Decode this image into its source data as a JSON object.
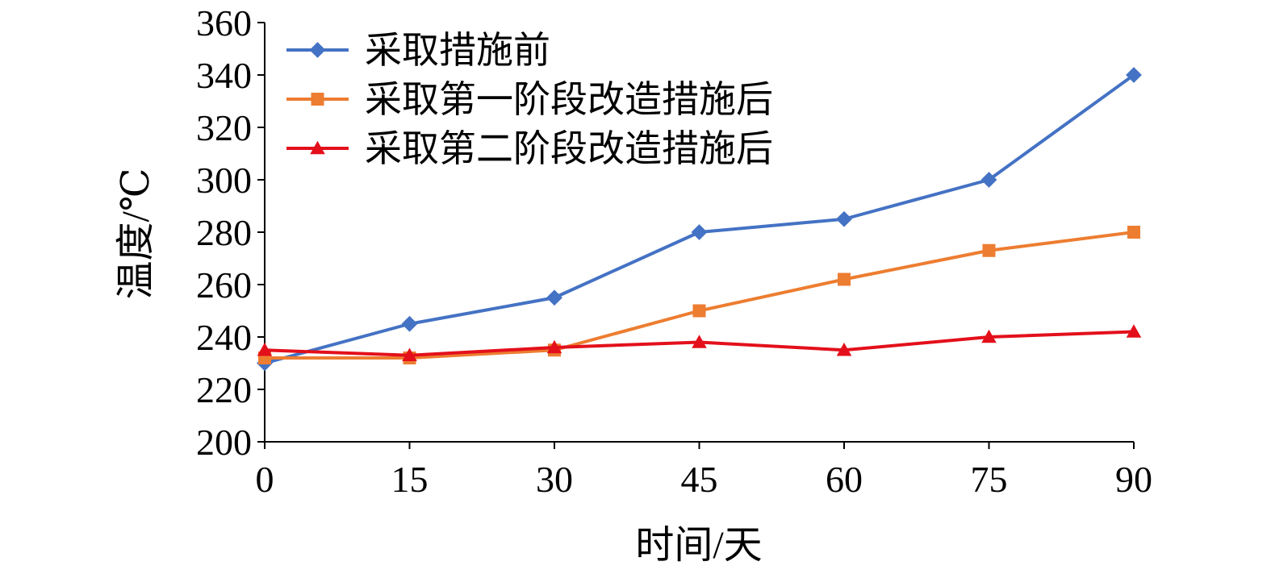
{
  "chart_data": {
    "type": "line",
    "title": "",
    "xlabel": "时间/天",
    "ylabel": "温度/℃",
    "x": [
      0,
      15,
      30,
      45,
      60,
      75,
      90
    ],
    "xlim": [
      0,
      90
    ],
    "ylim": [
      200,
      360
    ],
    "x_ticks": [
      0,
      15,
      30,
      45,
      60,
      75,
      90
    ],
    "y_ticks": [
      200,
      220,
      240,
      260,
      280,
      300,
      320,
      340,
      360
    ],
    "grid": false,
    "legend_position": "top-left",
    "series": [
      {
        "name": "采取措施前",
        "color": "#4472C4",
        "marker": "diamond",
        "values": [
          230,
          245,
          255,
          280,
          285,
          300,
          340
        ]
      },
      {
        "name": "采取第一阶段改造措施后",
        "color": "#ED7D31",
        "marker": "square",
        "values": [
          232,
          232,
          235,
          250,
          262,
          273,
          280
        ]
      },
      {
        "name": "采取第二阶段改造措施后",
        "color": "#E3101B",
        "marker": "triangle",
        "values": [
          235,
          233,
          236,
          238,
          235,
          240,
          242
        ]
      }
    ]
  }
}
